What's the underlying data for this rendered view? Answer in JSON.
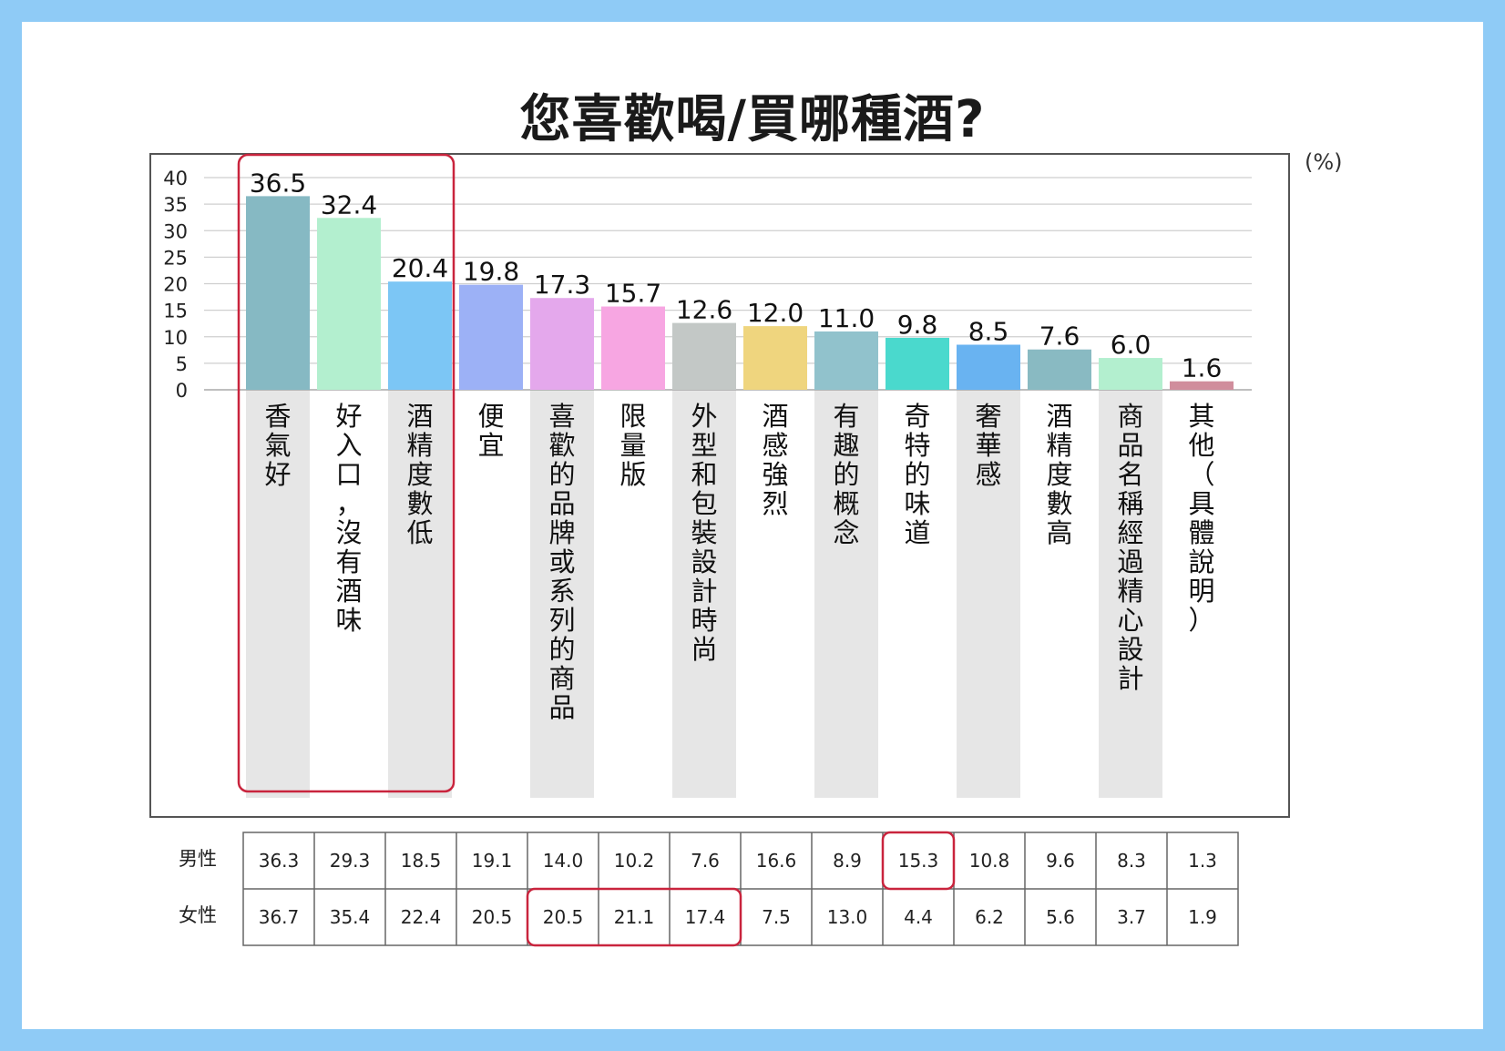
{
  "title": "您喜歡喝/買哪種酒?",
  "unit": "(%)",
  "chart_data": {
    "type": "bar",
    "ylim": [
      0,
      40
    ],
    "yticks": [
      0,
      5,
      10,
      15,
      20,
      25,
      30,
      35,
      40
    ],
    "grid": true,
    "categories": [
      "香氣好",
      "好入口，沒有酒味",
      "酒精度數低",
      "便宜",
      "喜歡的品牌或系列的商品",
      "限量版",
      "外型和包裝設計時尚",
      "酒感強烈",
      "有趣的概念",
      "奇特的味道",
      "奢華感",
      "酒精度數高",
      "商品名稱經過精心設計",
      "其他（具體說明）"
    ],
    "values": [
      36.5,
      32.4,
      20.4,
      19.8,
      17.3,
      15.7,
      12.6,
      12.0,
      11.0,
      9.8,
      8.5,
      7.6,
      6.0,
      1.6
    ],
    "value_labels": [
      "36.5",
      "32.4",
      "20.4",
      "19.8",
      "17.3",
      "15.7",
      "12.6",
      "12.0",
      "11.0",
      "9.8",
      "8.5",
      "7.6",
      "6.0",
      "1.6"
    ],
    "colors": [
      "#86b9c3",
      "#b3efcf",
      "#7cc6f5",
      "#9cb1f6",
      "#e4a8ec",
      "#f7a6e2",
      "#c3c8c6",
      "#efd57e",
      "#91c2cc",
      "#4ad9cd",
      "#69b3f1",
      "#89bac2",
      "#b3efcf",
      "#d08d9c"
    ],
    "highlight_box_categories": [
      "香氣好",
      "好入口，沒有酒味",
      "酒精度數低"
    ],
    "table": {
      "rows": [
        {
          "label": "男性",
          "values": [
            "36.3",
            "29.3",
            "18.5",
            "19.1",
            "14.0",
            "10.2",
            "7.6",
            "16.6",
            "8.9",
            "15.3",
            "10.8",
            "9.6",
            "8.3",
            "1.3"
          ]
        },
        {
          "label": "女性",
          "values": [
            "36.7",
            "35.4",
            "22.4",
            "20.5",
            "20.5",
            "21.1",
            "17.4",
            "7.5",
            "13.0",
            "4.4",
            "6.2",
            "5.6",
            "3.7",
            "1.9"
          ]
        }
      ],
      "highlights": [
        {
          "row": "男性",
          "columns": [
            "奇特的味道"
          ]
        },
        {
          "row": "女性",
          "columns": [
            "喜歡的品牌或系列的商品",
            "限量版",
            "外型和包裝設計時尚"
          ]
        }
      ]
    }
  }
}
